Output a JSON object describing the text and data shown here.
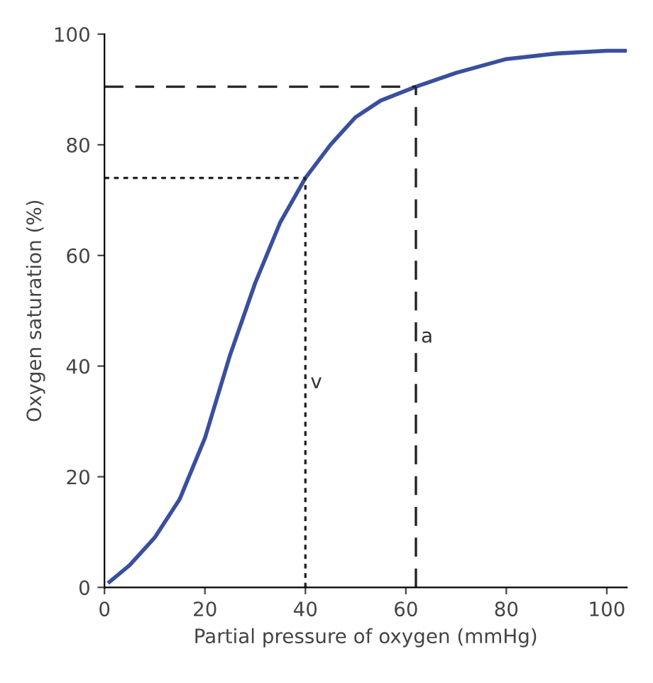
{
  "chart_data": {
    "type": "line",
    "xlabel": "Partial pressure of oxygen (mmHg)",
    "ylabel": "Oxygen saturation (%)",
    "series": [
      {
        "color": "#3a4f9e",
        "x": [
          1,
          5,
          10,
          15,
          20,
          25,
          30,
          35,
          40,
          45,
          50,
          55,
          62,
          70,
          80,
          90,
          100,
          104
        ],
        "values": [
          1,
          4,
          9,
          16,
          27,
          42,
          55,
          66,
          74,
          80,
          85,
          88,
          90.5,
          93,
          95.5,
          96.5,
          97,
          97
        ]
      }
    ],
    "xlim": [
      0,
      104
    ],
    "ylim": [
      0,
      100
    ],
    "xticks": [
      0,
      20,
      40,
      60,
      80,
      100
    ],
    "yticks": [
      0,
      20,
      40,
      60,
      80,
      100
    ],
    "grid": false,
    "marker": "none",
    "line_style": "solid",
    "ref_lines": [
      {
        "axis": "x",
        "value": 40,
        "label": "v",
        "line_style": "dotted",
        "color": "#222222"
      },
      {
        "axis": "y",
        "value": 74,
        "line_style": "dotted",
        "color": "#222222"
      },
      {
        "axis": "x",
        "value": 62,
        "label": "a",
        "line_style": "dashed",
        "color": "#222222"
      },
      {
        "axis": "y",
        "value": 90.5,
        "line_style": "dashed",
        "color": "#222222"
      }
    ]
  }
}
